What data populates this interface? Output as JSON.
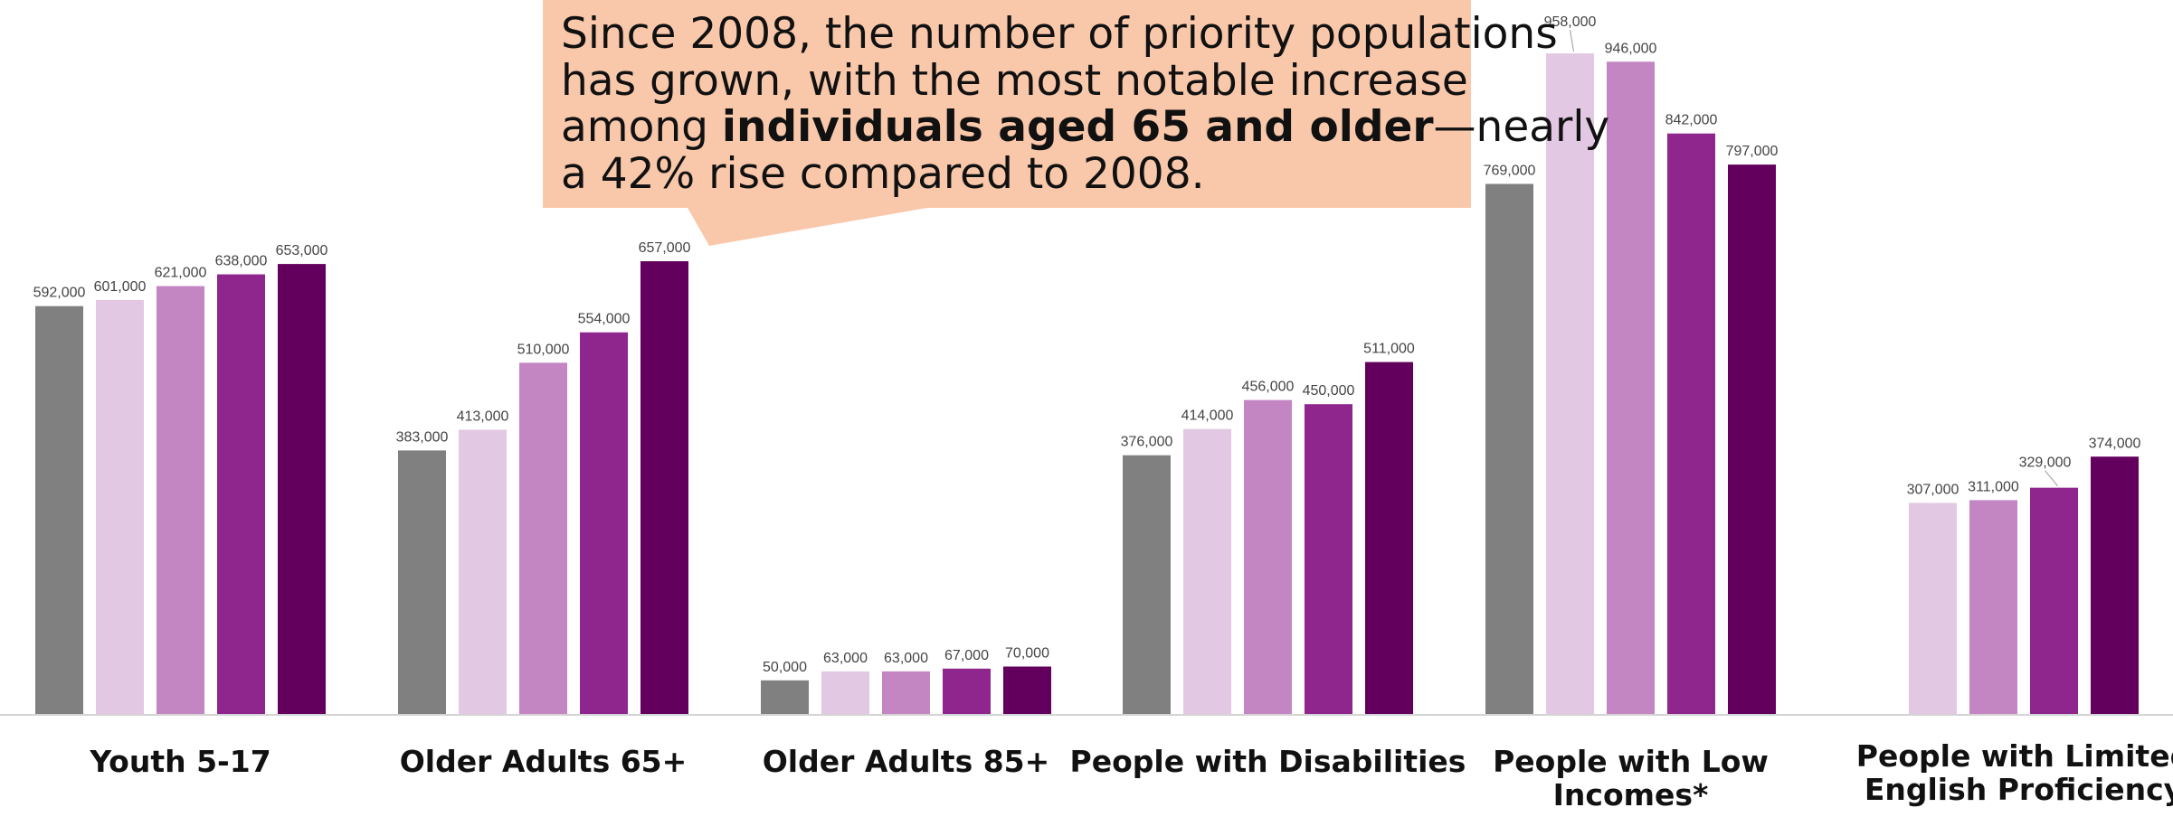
{
  "chart_data": {
    "type": "bar",
    "title": "",
    "xlabel": "",
    "ylabel": "",
    "ylim": [
      0,
      1000000
    ],
    "grid": false,
    "legend": "none",
    "categories": [
      [
        "Youth 5-17"
      ],
      [
        "Older Adults 65+"
      ],
      [
        "Older Adults 85+"
      ],
      [
        "People with Disabilities"
      ],
      [
        "People with Low",
        "Incomes*"
      ],
      [
        "People with Limited",
        "English Proficiency"
      ]
    ],
    "series": [
      {
        "color": "#808080",
        "values": [
          592000,
          383000,
          50000,
          376000,
          769000,
          null
        ]
      },
      {
        "color": "#e3c8e3",
        "values": [
          601000,
          413000,
          63000,
          414000,
          958000,
          307000
        ]
      },
      {
        "color": "#c386c3",
        "values": [
          621000,
          510000,
          63000,
          456000,
          946000,
          311000
        ]
      },
      {
        "color": "#8e268e",
        "values": [
          638000,
          554000,
          67000,
          450000,
          842000,
          329000
        ]
      },
      {
        "color": "#63005d",
        "values": [
          653000,
          657000,
          70000,
          511000,
          797000,
          374000
        ]
      }
    ],
    "value_labels": [
      [
        "592,000",
        "383,000",
        "50,000",
        "376,000",
        "769,000",
        null
      ],
      [
        "601,000",
        "413,000",
        "63,000",
        "414,000",
        "958,000",
        "307,000"
      ],
      [
        "621,000",
        "510,000",
        "63,000",
        "456,000",
        "946,000",
        "311,000"
      ],
      [
        "638,000",
        "554,000",
        "67,000",
        "450,000",
        "842,000",
        "329,000"
      ],
      [
        "653,000",
        "657,000",
        "70,000",
        "511,000",
        "797,000",
        "374,000"
      ]
    ],
    "annotation": {
      "lines": [
        [
          {
            "text": "Since 2008, the number of priority populations",
            "bold": false
          }
        ],
        [
          {
            "text": "has grown, with the most notable increase",
            "bold": false
          }
        ],
        [
          {
            "text": "among ",
            "bold": false
          },
          {
            "text": "individuals aged 65 and older",
            "bold": true
          },
          {
            "text": "—nearly",
            "bold": false
          }
        ],
        [
          {
            "text": "a 42% rise compared to 2008.",
            "bold": false
          }
        ]
      ],
      "background": "#f9c8ab"
    }
  }
}
